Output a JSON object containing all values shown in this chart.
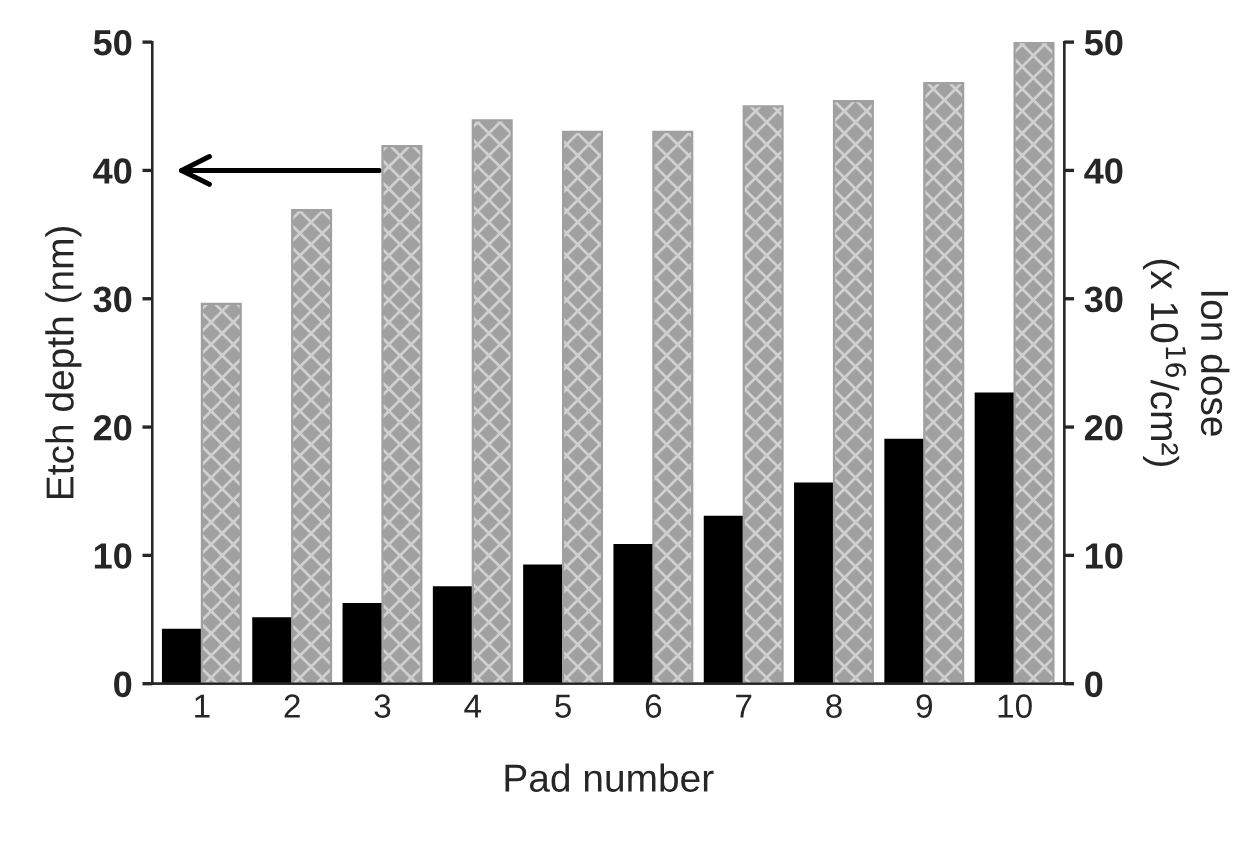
{
  "chart_data": {
    "type": "bar",
    "xlabel": "Pad number",
    "ylabel": "Etch depth (nm)",
    "y2label": "Ion dose\n(x 10$^{16}$/cm²)",
    "categories": [
      "1",
      "2",
      "3",
      "4",
      "5",
      "6",
      "7",
      "8",
      "9",
      "10"
    ],
    "series": [
      {
        "color": "#000000",
        "values": [
          4.2,
          5.1,
          6.2,
          7.5,
          9.2,
          10.8,
          13.0,
          15.6,
          19.0,
          22.6
        ]
      },
      {
        "color": "#a0a0a0",
        "axis": "y2",
        "values": [
          29.6,
          36.9,
          41.9,
          43.9,
          43.0,
          43.0,
          45.0,
          45.4,
          46.8,
          50.0
        ]
      }
    ],
    "ylim": [
      0,
      50
    ],
    "yticks": [
      0,
      10,
      20,
      30,
      40,
      50
    ],
    "y2lim": [
      0,
      50
    ],
    "y2ticks": [
      0,
      10,
      20,
      30,
      40,
      50
    ],
    "grid": false,
    "legend": false
  }
}
